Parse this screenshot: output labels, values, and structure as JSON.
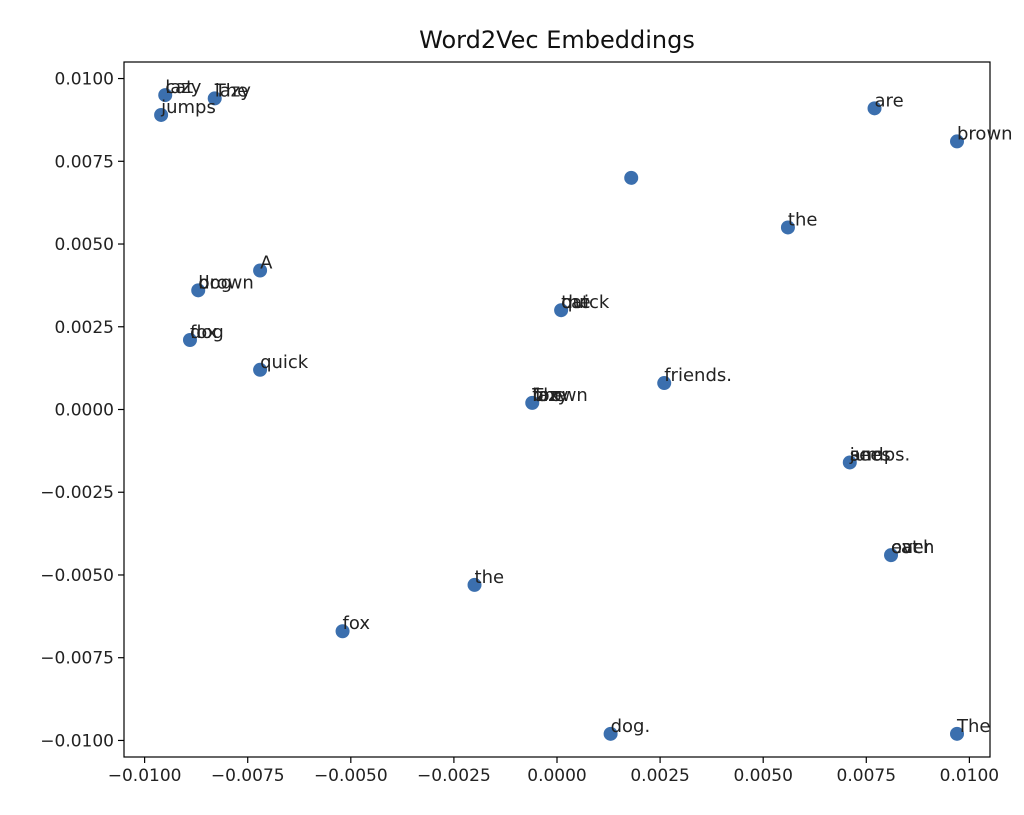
{
  "chart_data": {
    "type": "scatter",
    "title": "Word2Vec Embeddings",
    "xlabel": "",
    "ylabel": "",
    "xlim": [
      -0.0105,
      0.0105
    ],
    "ylim": [
      -0.0105,
      0.0105
    ],
    "grid": false,
    "x_ticks": [
      -0.01,
      -0.0075,
      -0.005,
      -0.0025,
      0.0,
      0.0025,
      0.005,
      0.0075,
      0.01
    ],
    "x_tick_labels": [
      "−0.0100",
      "−0.0075",
      "−0.0050",
      "−0.0025",
      "0.0000",
      "0.0025",
      "0.0050",
      "0.0075",
      "0.0100"
    ],
    "y_ticks": [
      0.01,
      0.0075,
      0.005,
      0.0025,
      0.0,
      -0.0025,
      -0.005,
      -0.0075,
      -0.01
    ],
    "y_tick_labels": [
      "0.0100",
      "0.0075",
      "0.0050",
      "0.0025",
      "0.0000",
      "−0.0025",
      "−0.0050",
      "−0.0075",
      "−0.0100"
    ],
    "marker_color": "#3b6fae",
    "points": [
      {
        "x": -0.0095,
        "y": 0.0095,
        "labels": [
          "lazy",
          "cat"
        ]
      },
      {
        "x": -0.0096,
        "y": 0.0089,
        "labels": [
          "jumps"
        ]
      },
      {
        "x": -0.0083,
        "y": 0.0094,
        "labels": [
          "The",
          "lazy"
        ]
      },
      {
        "x": -0.0087,
        "y": 0.0036,
        "labels": [
          "brown",
          "dog"
        ]
      },
      {
        "x": -0.0089,
        "y": 0.0021,
        "labels": [
          "dog",
          "fox"
        ]
      },
      {
        "x": -0.0072,
        "y": 0.0042,
        "labels": [
          "A"
        ]
      },
      {
        "x": -0.0072,
        "y": 0.0012,
        "labels": [
          "quick"
        ]
      },
      {
        "x": 0.0018,
        "y": 0.007,
        "labels": []
      },
      {
        "x": 0.0001,
        "y": 0.003,
        "labels": [
          "the",
          "quick",
          "cat"
        ]
      },
      {
        "x": -0.0006,
        "y": 0.0002,
        "labels": [
          "brown",
          "lazy",
          "fox",
          "The"
        ]
      },
      {
        "x": 0.0026,
        "y": 0.0008,
        "labels": [
          "friends."
        ]
      },
      {
        "x": 0.0056,
        "y": 0.0055,
        "labels": [
          "the"
        ]
      },
      {
        "x": 0.0077,
        "y": 0.0091,
        "labels": [
          "are"
        ]
      },
      {
        "x": 0.0097,
        "y": 0.0081,
        "labels": [
          "brown"
        ]
      },
      {
        "x": 0.0071,
        "y": -0.0016,
        "labels": [
          "jumps.",
          "and",
          "sees"
        ]
      },
      {
        "x": 0.0081,
        "y": -0.0044,
        "labels": [
          "over",
          "each",
          "cat"
        ]
      },
      {
        "x": -0.002,
        "y": -0.0053,
        "labels": [
          "the"
        ]
      },
      {
        "x": -0.0052,
        "y": -0.0067,
        "labels": [
          "fox"
        ]
      },
      {
        "x": 0.0013,
        "y": -0.0098,
        "labels": [
          "dog."
        ]
      },
      {
        "x": 0.0097,
        "y": -0.0098,
        "labels": [
          "The"
        ]
      }
    ]
  }
}
